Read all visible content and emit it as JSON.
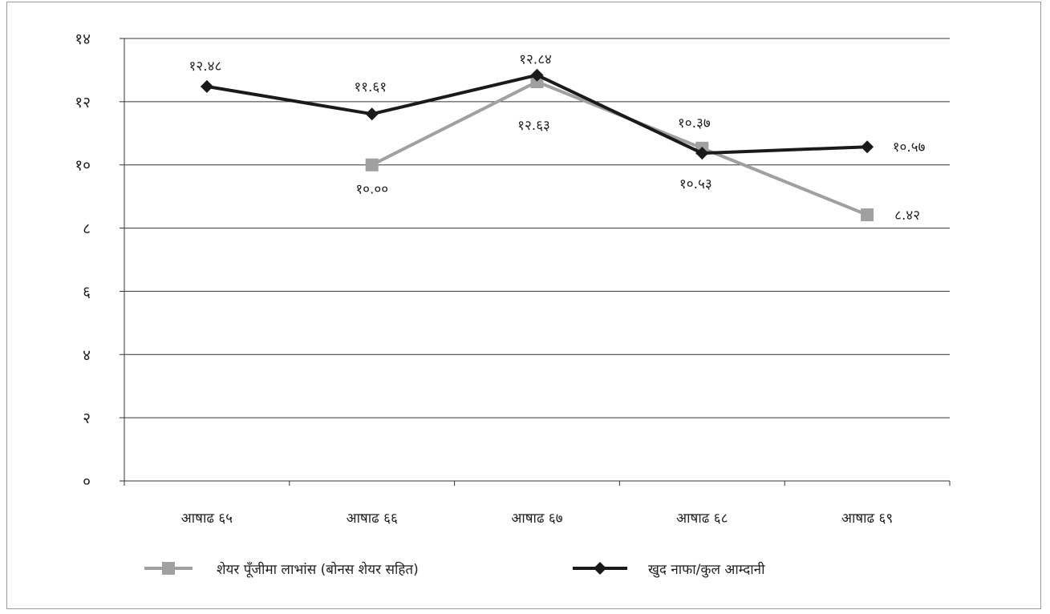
{
  "chart_data": {
    "type": "line",
    "categories": [
      "आषाढ ६५",
      "आषाढ ६६",
      "आषाढ ६७",
      "आषाढ ६८",
      "आषाढ ६९"
    ],
    "ylim": [
      0,
      14
    ],
    "yticks": [
      0,
      2,
      4,
      6,
      8,
      10,
      12,
      14
    ],
    "ytick_labels": [
      "०",
      "२",
      "४",
      "६",
      "८",
      "१०",
      "१२",
      "१४"
    ],
    "grid": true,
    "legend_position": "bottom",
    "series": [
      {
        "name": "शेयर पूँजीमा लाभांस (बोनस शेयर सहित)",
        "color": "#a0a0a0",
        "marker": "square",
        "values": [
          null,
          10.0,
          12.63,
          10.53,
          8.42
        ],
        "labels": [
          null,
          "१०.००",
          "१२.६३",
          "१०.५३",
          "८.४२"
        ]
      },
      {
        "name": "खुद नाफा/कुल आम्दानी",
        "color": "#1a1a1a",
        "marker": "diamond",
        "values": [
          12.48,
          11.61,
          12.84,
          10.37,
          10.57
        ],
        "labels": [
          "१२.४८",
          "११.६१",
          "१२.८४",
          "१०.३७",
          "१०.५७"
        ]
      }
    ]
  }
}
